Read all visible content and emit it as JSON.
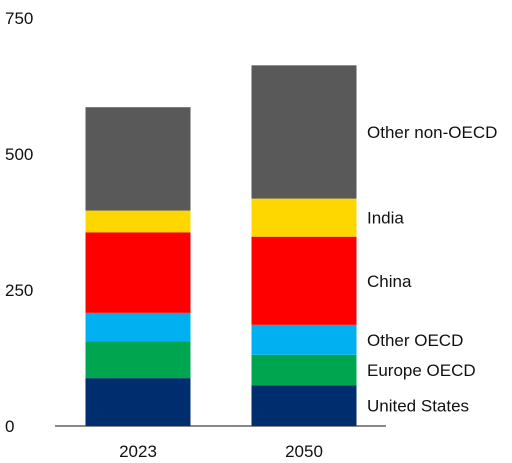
{
  "chart_data": {
    "type": "bar",
    "stacked": true,
    "categories": [
      "2023",
      "2050"
    ],
    "series": [
      {
        "name": "United States",
        "values": [
          88,
          75
        ],
        "color": "#002D6E"
      },
      {
        "name": "Europe OECD",
        "values": [
          68,
          56
        ],
        "color": "#00A550"
      },
      {
        "name": "Other OECD",
        "values": [
          52,
          55
        ],
        "color": "#00B0F0"
      },
      {
        "name": "China",
        "values": [
          148,
          162
        ],
        "color": "#FF0000"
      },
      {
        "name": "India",
        "values": [
          40,
          70
        ],
        "color": "#FFD700"
      },
      {
        "name": "Other non-OECD",
        "values": [
          190,
          245
        ],
        "color": "#595959"
      }
    ],
    "yticks": [
      0,
      250,
      500,
      750
    ],
    "ylim": [
      0,
      750
    ],
    "title": "",
    "xlabel": "",
    "ylabel": "",
    "legend_position": "right, aligned with stack segments"
  }
}
